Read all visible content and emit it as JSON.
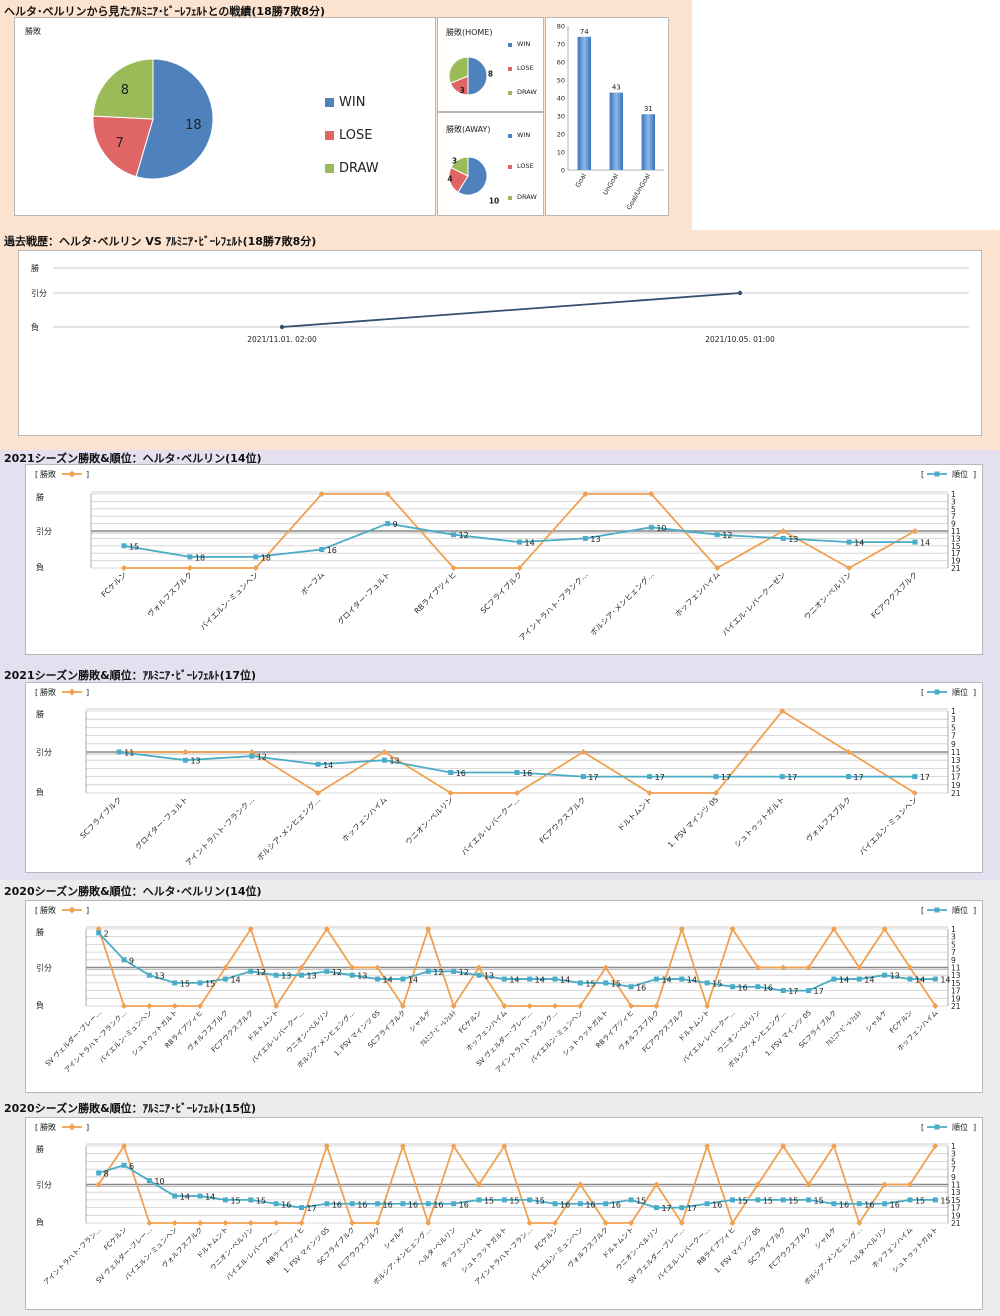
{
  "sections": {
    "summary_title": "ヘルタ･ベルリンから見たｱﾙﾐﾆｱ･ﾋﾞｰﾚﾌｪﾙﾄとの戦績(18勝7敗8分)",
    "history_title": "過去戦歴：ヘルタ･ベルリン VS ｱﾙﾐﾆｱ･ﾋﾞｰﾚﾌｪﾙﾄ(18勝7敗8分)",
    "s1_title": "2021シーズン勝敗&順位：ヘルタ･ベルリン(14位)",
    "s2_title": "2021シーズン勝敗&順位：ｱﾙﾐﾆｱ･ﾋﾞｰﾚﾌｪﾙﾄ(17位)",
    "s3_title": "2020シーズン勝敗&順位：ヘルタ･ベルリン(14位)",
    "s4_title": "2020シーズン勝敗&順位：ｱﾙﾐﾆｱ･ﾋﾞｰﾚﾌｪﾙﾄ(15位)"
  },
  "colors": {
    "win": "#4f81bd",
    "lose": "#e06666",
    "draw": "#9bbb59",
    "result_line": "#f0a050",
    "rank_line": "#4aacc6",
    "history_line": "#33506e",
    "bar": "#4a86c8",
    "band_orange": "#fbe3cf",
    "band_purple": "#e5e0f0",
    "band_gray": "#ececec"
  },
  "legend_labels": {
    "win": "WIN",
    "lose": "LOSE",
    "draw": "DRAW"
  },
  "chart_data": [
    {
      "type": "pie",
      "title": "勝敗",
      "categories": [
        "WIN",
        "LOSE",
        "DRAW"
      ],
      "values": [
        18,
        7,
        8
      ]
    },
    {
      "type": "pie",
      "title": "勝敗(HOME)",
      "categories": [
        "WIN",
        "LOSE",
        "DRAW"
      ],
      "values": [
        8,
        3,
        5
      ]
    },
    {
      "type": "pie",
      "title": "勝敗(AWAY)",
      "categories": [
        "WIN",
        "LOSE",
        "DRAW"
      ],
      "values": [
        10,
        4,
        3
      ]
    },
    {
      "type": "bar",
      "categories": [
        "Goal",
        "UnGoal",
        "Goal/UnGoal"
      ],
      "values": [
        74,
        43,
        31
      ],
      "ylim": [
        0,
        80
      ],
      "yticks": [
        0,
        10,
        20,
        30,
        40,
        50,
        60,
        70,
        80
      ]
    },
    {
      "type": "line",
      "y_categories": [
        "勝",
        "引分",
        "負"
      ],
      "x": [
        "2021/11.01. 02:00",
        "2021/10.05. 01:00"
      ],
      "values": [
        "負",
        "引分"
      ]
    },
    {
      "type": "line",
      "result_legend": "勝敗",
      "rank_legend": "順位",
      "y_categories": [
        "勝",
        "引分",
        "負"
      ],
      "rank_ticks": [
        1,
        3,
        5,
        7,
        9,
        11,
        13,
        15,
        17,
        19,
        21
      ],
      "categories": [
        "FCケルン",
        "ヴォルフスブルク",
        "バイエルン･ミュンヘン",
        "ボーフム",
        "グロイター･フュルト",
        "RBライプツィヒ",
        "SCフライブルク",
        "アイントラハト･フランク…",
        "ボルシア･メンヒェング…",
        "ホッフェンハイム",
        "バイエル･レバークーゼン",
        "ウニオン･ベルリン",
        "FCアウクスブルク"
      ],
      "results": [
        "負",
        "負",
        "負",
        "勝",
        "勝",
        "負",
        "負",
        "勝",
        "勝",
        "負",
        "引分",
        "負",
        "引分"
      ],
      "ranks": [
        15,
        18,
        18,
        16,
        9,
        12,
        14,
        13,
        10,
        12,
        13,
        14,
        14
      ]
    },
    {
      "type": "line",
      "result_legend": "勝敗",
      "rank_legend": "順位",
      "y_categories": [
        "勝",
        "引分",
        "負"
      ],
      "rank_ticks": [
        1,
        3,
        5,
        7,
        9,
        11,
        13,
        15,
        17,
        19,
        21
      ],
      "categories": [
        "SCフライブルク",
        "グロイター･フュルト",
        "アイントラハト･フランク…",
        "ボルシア･メンヒェング…",
        "ホッフェンハイム",
        "ウニオン･ベルリン",
        "バイエル･レバークー…",
        "FCアウクスブルク",
        "ドルトムント",
        "1. FSV マインツ 05",
        "シュトゥットガルト",
        "ヴォルフスブルク",
        "バイエルン･ミュンヘン"
      ],
      "results": [
        "引分",
        "引分",
        "引分",
        "負",
        "引分",
        "負",
        "負",
        "引分",
        "負",
        "負",
        "勝",
        "引分",
        "負"
      ],
      "ranks": [
        11,
        13,
        12,
        14,
        13,
        16,
        16,
        17,
        17,
        17,
        17,
        17,
        17
      ]
    },
    {
      "type": "line",
      "result_legend": "勝敗",
      "rank_legend": "順位",
      "y_categories": [
        "勝",
        "引分",
        "負"
      ],
      "rank_ticks": [
        1,
        3,
        5,
        7,
        9,
        11,
        13,
        15,
        17,
        19,
        21
      ],
      "categories": [
        "SV ヴェルダー･ブレー…",
        "アイントラハト･フランク…",
        "バイエルン･ミュンヘン",
        "シュトゥットガルト",
        "RBライプツィヒ",
        "ヴォルフスブルク",
        "FCアウクスブルク",
        "ドルトムント",
        "バイエル･レバークー…",
        "ウニオン･ベルリン",
        "ボルシア･メンヒェング…",
        "1. FSV マインツ 05",
        "SCフライブルク",
        "シャルケ",
        "ｱﾙﾐﾆｱ･ﾋﾞｰﾚﾌｪﾙﾄ",
        "FCケルン",
        "ホッフェンハイム",
        "SV ヴェルダー･ブレー…",
        "アイントラハト･フランク…",
        "バイエルン･ミュンヘン",
        "シュトゥットガルト",
        "RBライプツィヒ",
        "ヴォルフスブルク",
        "FCアウクスブルク",
        "ドルトムント",
        "バイエル･レバークー…",
        "ウニオン･ベルリン",
        "ボルシア･メンヒェング…",
        "1. FSV マインツ 05",
        "SCフライブルク",
        "ｱﾙﾐﾆｱ･ﾋﾞｰﾚﾌｪﾙﾄ",
        "シャルケ",
        "FCケルン",
        "ホッフェンハイム"
      ],
      "results": [
        "勝",
        "負",
        "負",
        "負",
        "負",
        "引分",
        "勝",
        "負",
        "引分",
        "勝",
        "引分",
        "引分",
        "負",
        "勝",
        "負",
        "引分",
        "負",
        "負",
        "負",
        "負",
        "引分",
        "負",
        "負",
        "勝",
        "負",
        "勝",
        "引分",
        "引分",
        "引分",
        "勝",
        "引分",
        "勝",
        "引分",
        "負"
      ],
      "ranks": [
        2,
        9,
        13,
        15,
        15,
        14,
        12,
        13,
        13,
        12,
        13,
        14,
        14,
        12,
        12,
        13,
        14,
        14,
        14,
        15,
        15,
        16,
        14,
        14,
        15,
        16,
        16,
        17,
        17,
        14,
        14,
        13,
        14,
        14
      ]
    },
    {
      "type": "line",
      "result_legend": "勝敗",
      "rank_legend": "順位",
      "y_categories": [
        "勝",
        "引分",
        "負"
      ],
      "rank_ticks": [
        1,
        3,
        5,
        7,
        9,
        11,
        13,
        15,
        17,
        19,
        21
      ],
      "categories": [
        "アイントラハト･フラン…",
        "FCケルン",
        "SV ヴェルダー･ブレー…",
        "バイエルン･ミュンヘン",
        "ヴォルフスブルク",
        "ドルトムント",
        "ウニオン･ベルリン",
        "バイエル･レバークー…",
        "RBライプツィヒ",
        "1. FSV マインツ 05",
        "SCフライブルク",
        "FCアウクスブルク",
        "シャルケ",
        "ボルシア･メンヒェング…",
        "ヘルタ･ベルリン",
        "ホッフェンハイム",
        "シュトゥットガルト",
        "アイントラハト･フラン…",
        "FCケルン",
        "バイエルン･ミュンヘン",
        "ヴォルフスブルク",
        "ドルトムント",
        "ウニオン･ベルリン",
        "SV ヴェルダー･ブレー…",
        "バイエル･レバークー…",
        "RBライプツィヒ",
        "1. FSV マインツ 05",
        "SCフライブルク",
        "FCアウクスブルク",
        "シャルケ",
        "ボルシア･メンヒェング…",
        "ヘルタ･ベルリン",
        "ホッフェンハイム",
        "シュトゥットガルト"
      ],
      "results": [
        "引分",
        "勝",
        "負",
        "負",
        "負",
        "負",
        "負",
        "負",
        "負",
        "勝",
        "負",
        "負",
        "勝",
        "負",
        "勝",
        "引分",
        "勝",
        "負",
        "負",
        "引分",
        "負",
        "負",
        "引分",
        "負",
        "勝",
        "負",
        "引分",
        "勝",
        "引分",
        "勝",
        "負",
        "引分",
        "引分",
        "勝"
      ],
      "ranks": [
        8,
        6,
        10,
        14,
        14,
        15,
        15,
        16,
        17,
        16,
        16,
        16,
        16,
        16,
        16,
        15,
        15,
        15,
        16,
        16,
        16,
        15,
        17,
        17,
        16,
        15,
        15,
        15,
        15,
        16,
        16,
        16,
        15,
        15
      ]
    }
  ]
}
